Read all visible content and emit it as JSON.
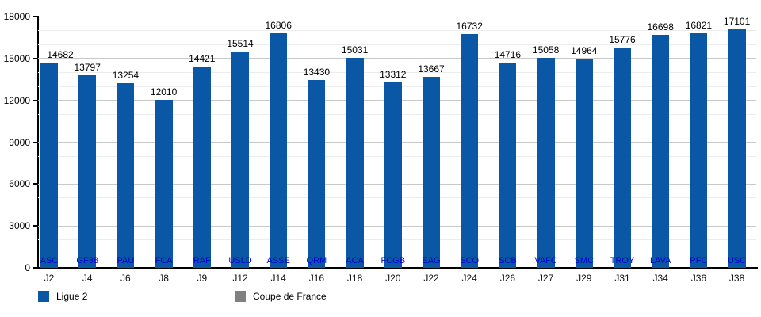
{
  "chart_data": {
    "type": "bar",
    "title": "",
    "xlabel": "",
    "ylabel": "",
    "categories": [
      "J2",
      "J4",
      "J6",
      "J8",
      "J9",
      "J12",
      "J14",
      "J16",
      "J18",
      "J20",
      "J22",
      "J24",
      "J26",
      "J27",
      "J29",
      "J31",
      "J34",
      "J36",
      "J38"
    ],
    "bar_labels": [
      "ASC",
      "GF38",
      "PAU",
      "FCA",
      "RAF",
      "USLD",
      "ASSE",
      "QRM",
      "ACA",
      "FCGB",
      "EAG",
      "SCO",
      "SCB",
      "VAFC",
      "SMC",
      "TROY",
      "LAVA",
      "PFC",
      "USC"
    ],
    "values": [
      14682,
      13797,
      13254,
      12010,
      14421,
      15514,
      16806,
      13430,
      15031,
      13312,
      13667,
      16732,
      14716,
      15058,
      14964,
      15776,
      16698,
      16821,
      17101
    ],
    "ylim": [
      0,
      18000
    ],
    "y_ticks": [
      0,
      3000,
      6000,
      9000,
      12000,
      15000,
      18000
    ],
    "y_minor_step": 1000,
    "grid": "on",
    "legend_position": "bottom",
    "legend": [
      {
        "label": "Ligue 2",
        "color": "#0A57A6"
      },
      {
        "label": "Coupe de France",
        "color": "#808080"
      }
    ],
    "colors": {
      "bar": "#0A57A6",
      "bar_label_text": "#0000CC",
      "value_label_text": "#000000",
      "axis": "#000000",
      "grid_major": "#C9C9C9",
      "grid_minor": "#ECECEC"
    }
  }
}
